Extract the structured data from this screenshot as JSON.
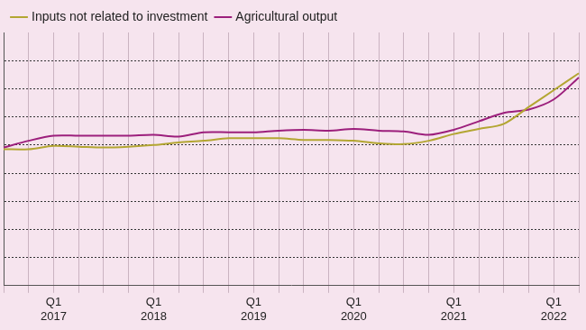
{
  "chart_data": {
    "type": "line",
    "categories": [
      null,
      null,
      [
        "Q1",
        "2017"
      ],
      null,
      null,
      null,
      [
        "Q1",
        "2018"
      ],
      null,
      null,
      null,
      [
        "Q1",
        "2019"
      ],
      null,
      null,
      null,
      [
        "Q1",
        "2020"
      ],
      null,
      null,
      null,
      [
        "Q1",
        "2021"
      ],
      null,
      null,
      null,
      [
        "Q1",
        "2022"
      ],
      null
    ],
    "series": [
      {
        "name": "Inputs not related to investment",
        "color": "#b3a632",
        "values": [
          98.5,
          98.5,
          99.7,
          99.4,
          99.1,
          99.4,
          100.0,
          100.9,
          101.5,
          102.4,
          102.4,
          102.4,
          101.8,
          101.8,
          101.5,
          100.6,
          100.3,
          101.5,
          103.9,
          105.7,
          107.5,
          113.5,
          119.5,
          125.5
        ]
      },
      {
        "name": "Agricultural output",
        "color": "#9c1f7c",
        "values": [
          99.1,
          101.5,
          103.3,
          103.3,
          103.3,
          103.3,
          103.6,
          103.0,
          104.5,
          104.5,
          104.5,
          105.1,
          105.4,
          105.1,
          105.7,
          105.1,
          104.8,
          103.6,
          105.4,
          108.4,
          111.4,
          112.6,
          116.2,
          124.0
        ]
      }
    ],
    "ylim": [
      50,
      140
    ],
    "yticks": [
      60,
      70,
      80,
      90,
      100,
      110,
      120,
      130
    ],
    "grid": true,
    "legend": "top-left",
    "tick_labels": "x"
  }
}
